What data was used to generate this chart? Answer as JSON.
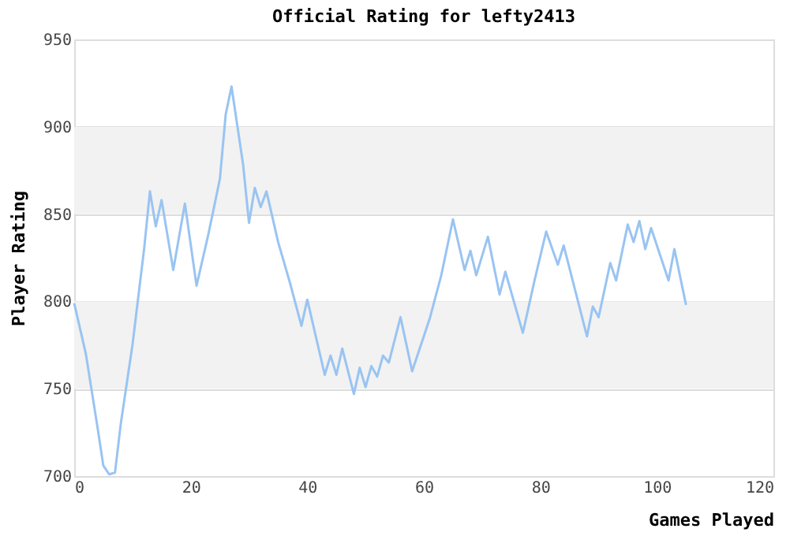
{
  "chart_data": {
    "type": "line",
    "title": "Official Rating for lefty2413",
    "xlabel": "Games Played",
    "ylabel": "Player Rating",
    "x": [
      0,
      2,
      4,
      5,
      6,
      7,
      8,
      10,
      12,
      13,
      14,
      15,
      17,
      19,
      21,
      23,
      25,
      26,
      27,
      29,
      30,
      31,
      32,
      33,
      35,
      37,
      39,
      40,
      43,
      44,
      45,
      46,
      48,
      49,
      50,
      51,
      52,
      53,
      54,
      56,
      58,
      61,
      63,
      65,
      67,
      68,
      69,
      71,
      73,
      74,
      77,
      79,
      81,
      83,
      84,
      88,
      89,
      90,
      92,
      93,
      95,
      96,
      97,
      98,
      99,
      102,
      103,
      105
    ],
    "series": [
      {
        "color": "#99c4f2",
        "values": [
          799,
          770,
          728,
          706,
          701,
          702,
          730,
          775,
          830,
          863,
          843,
          858,
          818,
          856,
          809,
          838,
          870,
          907,
          923,
          878,
          845,
          865,
          854,
          863,
          834,
          811,
          786,
          801,
          758,
          769,
          758,
          773,
          747,
          762,
          751,
          763,
          757,
          769,
          765,
          791,
          760,
          790,
          815,
          847,
          818,
          829,
          815,
          837,
          804,
          817,
          782,
          812,
          840,
          821,
          832,
          780,
          797,
          791,
          822,
          812,
          844,
          834,
          846,
          830,
          842,
          812,
          830,
          798
        ]
      }
    ],
    "xlim": [
      0,
      120
    ],
    "xticks": [
      0,
      20,
      40,
      60,
      80,
      100,
      120
    ],
    "ylim": [
      700,
      950
    ],
    "yticks": [
      700,
      750,
      800,
      850,
      900,
      950
    ],
    "bands": [
      {
        "axis": "y",
        "from": 750,
        "to": 800,
        "color": "#f2f2f2"
      },
      {
        "axis": "y",
        "from": 850,
        "to": 900,
        "color": "#f2f2f2"
      }
    ],
    "grid": "y",
    "legend": false,
    "marker": "none",
    "line_style": "solid"
  }
}
